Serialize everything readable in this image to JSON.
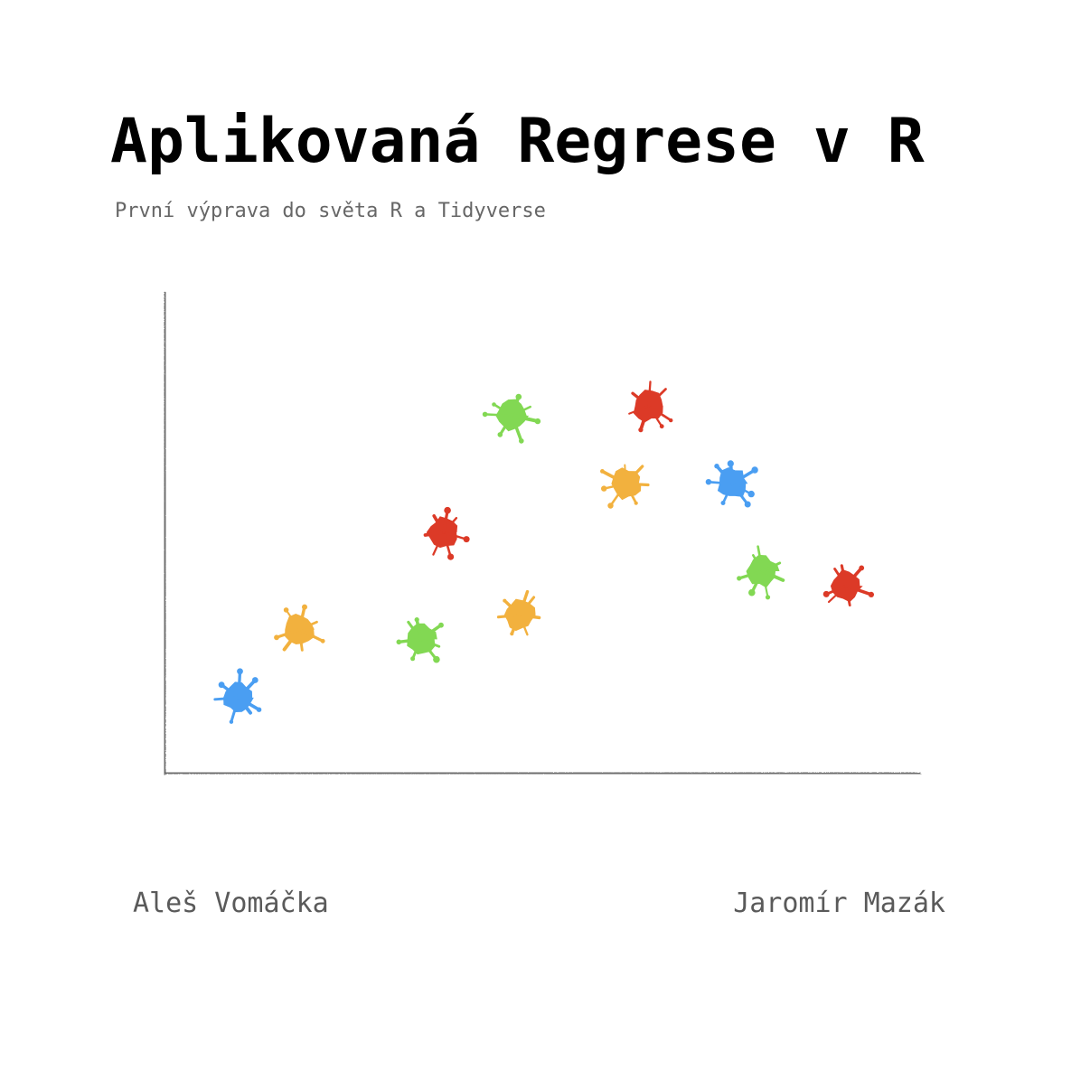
{
  "cover": {
    "title": "Aplikovaná Regrese v R",
    "subtitle": "První výprava do světa R a Tidyverse"
  },
  "authors": [
    "Aleš Vomáčka",
    "Jaromír Mazák"
  ],
  "colors": {
    "axis": "#111111",
    "blue": "#4A9EF2",
    "orange": "#F2B13E",
    "green": "#82D853",
    "red": "#DC3A27"
  },
  "chart_data": {
    "type": "scatter",
    "title": "",
    "xlabel": "",
    "ylabel": "",
    "xlim": [
      0,
      10
    ],
    "ylim": [
      0,
      10
    ],
    "grid": false,
    "marker": "paint-splat",
    "points": [
      {
        "x": 1.0,
        "y": 1.6,
        "color": "blue"
      },
      {
        "x": 1.8,
        "y": 3.0,
        "color": "orange"
      },
      {
        "x": 3.4,
        "y": 2.8,
        "color": "green"
      },
      {
        "x": 3.7,
        "y": 5.0,
        "color": "red"
      },
      {
        "x": 4.6,
        "y": 7.4,
        "color": "green"
      },
      {
        "x": 4.7,
        "y": 3.3,
        "color": "orange"
      },
      {
        "x": 6.1,
        "y": 6.0,
        "color": "orange"
      },
      {
        "x": 6.4,
        "y": 7.6,
        "color": "red"
      },
      {
        "x": 7.5,
        "y": 6.0,
        "color": "blue"
      },
      {
        "x": 7.9,
        "y": 4.2,
        "color": "green"
      },
      {
        "x": 9.0,
        "y": 3.9,
        "color": "red"
      }
    ]
  }
}
